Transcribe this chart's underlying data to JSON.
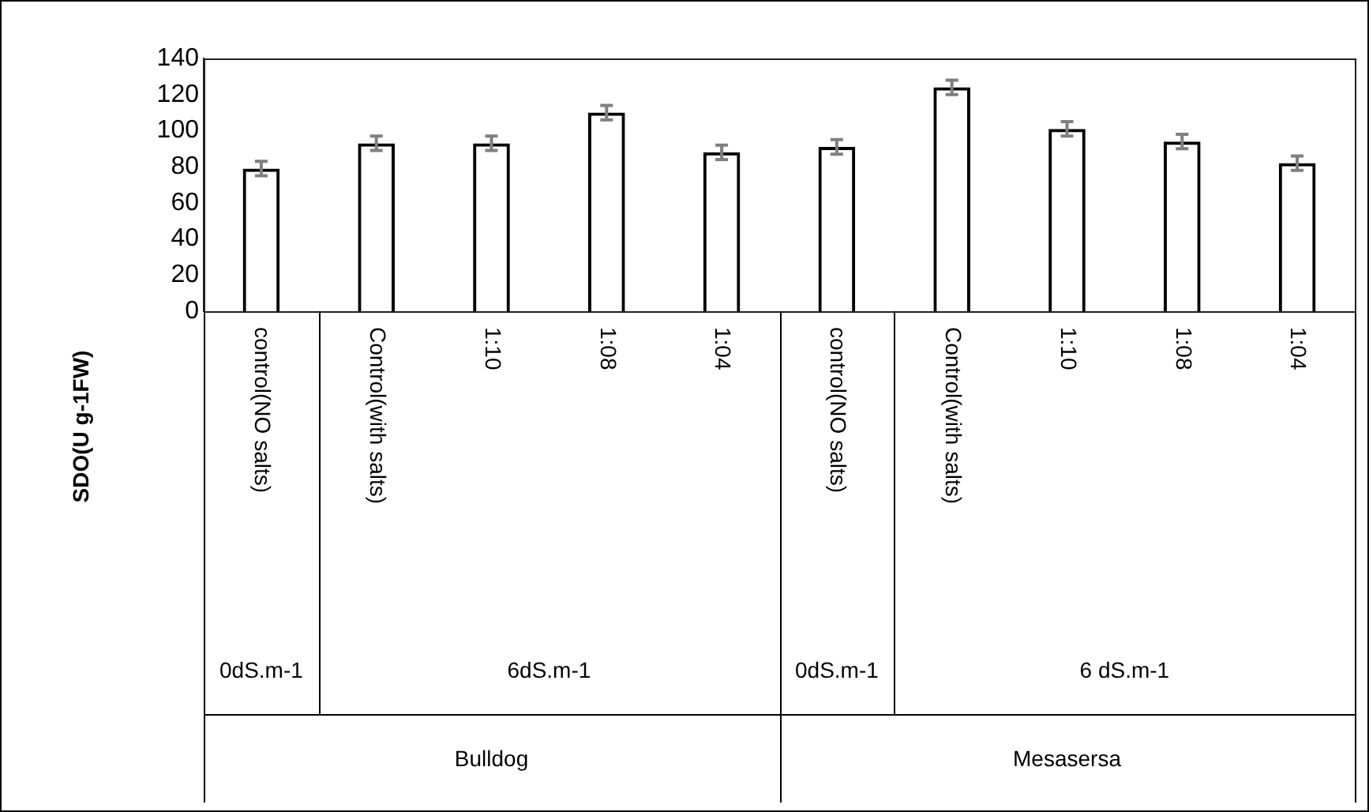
{
  "chart_data": {
    "type": "bar",
    "ylabel": "SDO(U g-1FW)",
    "categories": [
      "control(NO salts)",
      "Control(with salts)",
      "1:10",
      "1:08",
      "1:04",
      "control(NO salts)",
      "Control(with salts)",
      "1:10",
      "1:08",
      "1:04"
    ],
    "values": [
      79,
      93,
      93,
      110,
      88,
      91,
      124,
      101,
      94,
      82
    ],
    "errors": [
      4,
      4,
      4,
      4,
      4,
      4,
      4,
      4,
      4,
      4
    ],
    "color": "#000000",
    "ylim": [
      0,
      140
    ],
    "yticks": [
      0,
      20,
      40,
      60,
      80,
      100,
      120,
      140
    ],
    "grid": false,
    "legend": false,
    "annotations": [
      "0dS.m-1",
      "6dS.m-1",
      "0dS.m-1",
      "6 dS.m-1",
      "Bulldog",
      "Mesasersa"
    ]
  }
}
